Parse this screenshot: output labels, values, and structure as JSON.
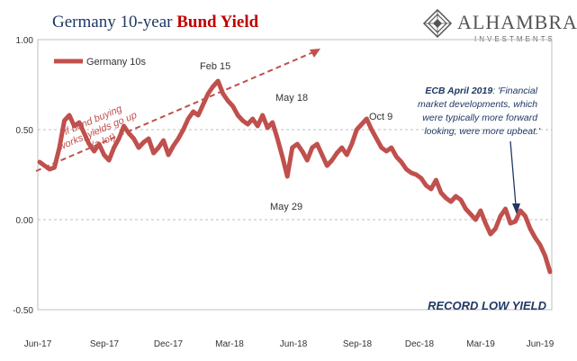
{
  "title": {
    "part1": "Germany 10-year ",
    "part2": "Bund Yield"
  },
  "logo": {
    "name": "ALHAMBRA",
    "sub": "INVESTMENTS"
  },
  "colors": {
    "series": "#c0504d",
    "title_dark": "#1f3864",
    "title_red": "#c00000",
    "arrow": "#c0504d",
    "annotation_blue": "#1f3864"
  },
  "annotations": {
    "trend": [
      "if bond buying",
      "works, yields go up",
      "(a lot)"
    ],
    "peaks": [
      "Feb 15",
      "May 18",
      "May 29",
      "Oct 9"
    ],
    "ecb_lines": [
      "ECB April 2019",
      ": 'Financial",
      "market developments, which",
      "were typically more forward",
      "looking, were more upbeat.'"
    ],
    "record": "RECORD LOW YIELD"
  },
  "chart_data": {
    "type": "line",
    "xlabels": [
      "Jun-17",
      "Sep-17",
      "Dec-17",
      "Mar-18",
      "Jun-18",
      "Sep-18",
      "Dec-18",
      "Mar-19",
      "Jun-19"
    ],
    "ytick_labels": [
      "1.00",
      "0.50",
      "0.00",
      "-0.50"
    ],
    "ylim": [
      -0.5,
      1.0
    ],
    "grid": "horizontal dashed",
    "legend_position": "top-left",
    "series": [
      {
        "name": "Germany 10s",
        "x": [
          0,
          1,
          2,
          3,
          4,
          5,
          6,
          7,
          8,
          9,
          10,
          11,
          12,
          13,
          14,
          15,
          16,
          17,
          18,
          19,
          20,
          21,
          22,
          23,
          24,
          25,
          26,
          27,
          28,
          29,
          30,
          31,
          32,
          33,
          34,
          35,
          36,
          37,
          38,
          39,
          40,
          41,
          42,
          43,
          44,
          45,
          46,
          47,
          48,
          49,
          50,
          51,
          52,
          53,
          54,
          55,
          56,
          57,
          58,
          59,
          60,
          61,
          62,
          63,
          64,
          65,
          66,
          67,
          68,
          69,
          70,
          71,
          72,
          73,
          74,
          75,
          76,
          77,
          78,
          79,
          80,
          81,
          82,
          83,
          84,
          85,
          86,
          87,
          88,
          89,
          90,
          91,
          92,
          93,
          94,
          95,
          96,
          97,
          98,
          99,
          100,
          101,
          102,
          103
        ],
        "values": [
          0.32,
          0.3,
          0.28,
          0.29,
          0.4,
          0.55,
          0.58,
          0.52,
          0.54,
          0.48,
          0.42,
          0.38,
          0.42,
          0.36,
          0.33,
          0.4,
          0.45,
          0.52,
          0.48,
          0.45,
          0.4,
          0.43,
          0.45,
          0.37,
          0.4,
          0.44,
          0.36,
          0.41,
          0.45,
          0.5,
          0.56,
          0.6,
          0.58,
          0.64,
          0.7,
          0.74,
          0.77,
          0.7,
          0.66,
          0.63,
          0.58,
          0.55,
          0.53,
          0.56,
          0.52,
          0.58,
          0.51,
          0.54,
          0.45,
          0.35,
          0.24,
          0.4,
          0.42,
          0.38,
          0.33,
          0.4,
          0.42,
          0.36,
          0.3,
          0.33,
          0.37,
          0.4,
          0.36,
          0.42,
          0.5,
          0.53,
          0.56,
          0.5,
          0.45,
          0.4,
          0.38,
          0.4,
          0.35,
          0.32,
          0.28,
          0.26,
          0.25,
          0.23,
          0.19,
          0.17,
          0.22,
          0.15,
          0.12,
          0.1,
          0.13,
          0.11,
          0.06,
          0.03,
          0.0,
          0.05,
          -0.02,
          -0.08,
          -0.05,
          0.02,
          0.06,
          -0.02,
          -0.01,
          0.05,
          0.02,
          -0.05,
          -0.1,
          -0.14,
          -0.2,
          -0.29
        ]
      }
    ]
  }
}
